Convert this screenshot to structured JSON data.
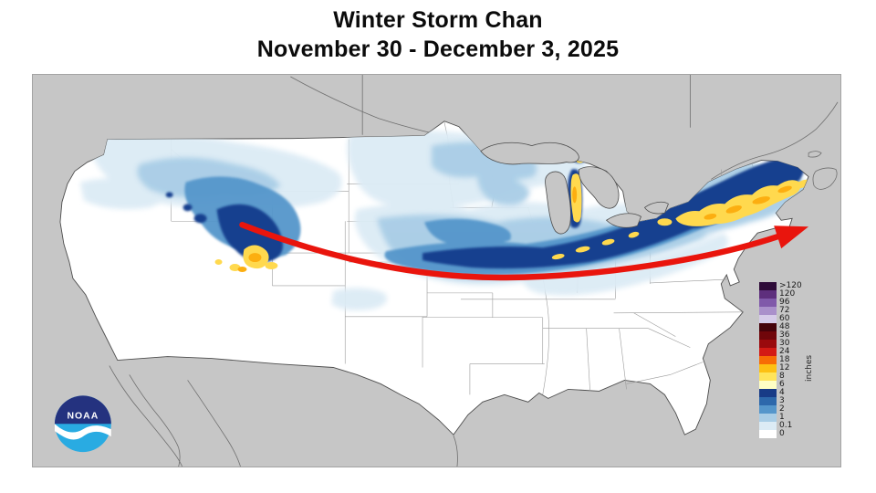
{
  "title": {
    "line1": "Winter Storm Chan",
    "line2": "November 30 - December 3, 2025"
  },
  "map": {
    "region": "Contiguous United States snowfall map",
    "background_color": "#c6c6c6",
    "land_color": "#ffffff"
  },
  "storm_track_arrow": {
    "color": "#e9150d"
  },
  "legend": {
    "unit_label": "inches",
    "entries": [
      {
        "label": ">120",
        "color": "#2e0b38"
      },
      {
        "label": "120",
        "color": "#5e2f7d"
      },
      {
        "label": "96",
        "color": "#8059aa"
      },
      {
        "label": "72",
        "color": "#aa90cb"
      },
      {
        "label": "60",
        "color": "#d6cbe9"
      },
      {
        "label": "48",
        "color": "#45020a"
      },
      {
        "label": "36",
        "color": "#70060a"
      },
      {
        "label": "30",
        "color": "#9a0a0d"
      },
      {
        "label": "24",
        "color": "#d31a15"
      },
      {
        "label": "18",
        "color": "#f76c05"
      },
      {
        "label": "12",
        "color": "#fdc013"
      },
      {
        "label": "8",
        "color": "#ffe45a"
      },
      {
        "label": "6",
        "color": "#ffffc4"
      },
      {
        "label": "4",
        "color": "#183b87"
      },
      {
        "label": "3",
        "color": "#2d68ab"
      },
      {
        "label": "2",
        "color": "#5596cb"
      },
      {
        "label": "1",
        "color": "#a9cde6"
      },
      {
        "label": "0.1",
        "color": "#dcebf5"
      },
      {
        "label": "0",
        "color": "#ffffff"
      }
    ]
  },
  "logo": {
    "text": "NOAA",
    "navy": "#24327f",
    "cyan": "#29abe2"
  }
}
